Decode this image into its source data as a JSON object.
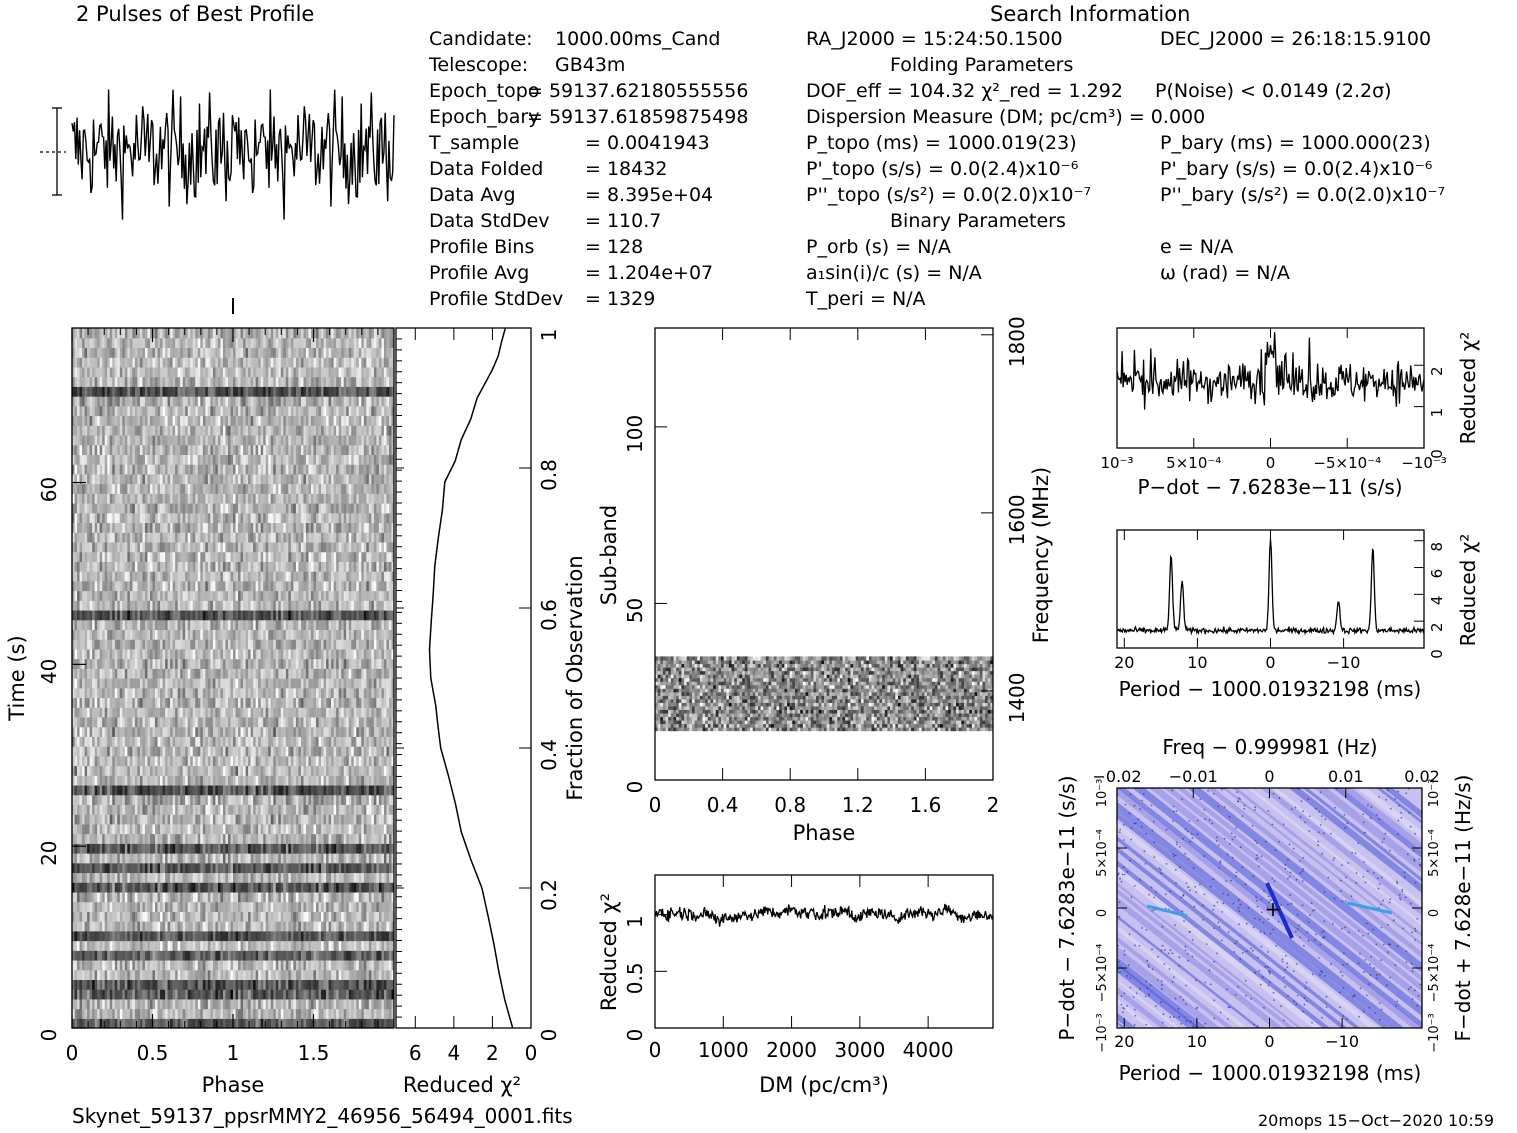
{
  "profile_title": "2 Pulses of Best Profile",
  "search_info_title": "Search Information",
  "left_info": [
    {
      "label": "Candidate:",
      "value": "1000.00ms_Cand"
    },
    {
      "label": "Telescope:",
      "value": "GB43m"
    },
    {
      "label": "Epoch_topo",
      "value": "= 59137.62180555556"
    },
    {
      "label": "Epoch_bary",
      "value": "= 59137.61859875498"
    },
    {
      "label": "T_sample",
      "value": "=  0.0041943"
    },
    {
      "label": "Data Folded",
      "value": "=  18432"
    },
    {
      "label": "Data Avg",
      "value": "=  8.395e+04"
    },
    {
      "label": "Data StdDev",
      "value": "=  110.7"
    },
    {
      "label": "Profile Bins",
      "value": "=  128"
    },
    {
      "label": "Profile Avg",
      "value": "=  1.204e+07"
    },
    {
      "label": "Profile StdDev",
      "value": "=  1329"
    }
  ],
  "ra": "RA_J2000 = 15:24:50.1500",
  "dec": "DEC_J2000 = 26:18:15.9100",
  "folding_title": "Folding Parameters",
  "dof": "DOF_eff = 104.32   χ²_red = 1.292",
  "pnoise": "P(Noise) < 0.0149   (2.2σ)",
  "dm_line": "Dispersion Measure (DM; pc/cm³) = 0.000",
  "ptopo": "P_topo (ms) =  1000.019(23)",
  "pbary": "P_bary (ms) =  1000.000(23)",
  "pdtopo": "P'_topo (s/s) = 0.0(2.4)x10⁻⁶",
  "pdbary": "P'_bary (s/s) = 0.0(2.4)x10⁻⁶",
  "pddtopo": "P''_topo (s/s²) = 0.0(2.0)x10⁻⁷",
  "pddbary": "P''_bary (s/s²) = 0.0(2.0)x10⁻⁷",
  "binary_title": "Binary Parameters",
  "porb": "P_orb (s) = N/A",
  "ecc": "e = N/A",
  "a1sini": "a₁sin(i)/c (s) = N/A",
  "omega": "ω (rad) = N/A",
  "tperi": "T_peri = N/A",
  "footer_file": "Skynet_59137_ppsrMMY2_46956_56494_0001.fits",
  "footer_stamp": "20mops 15−Oct−2020 10:59",
  "colors": {
    "grey_dark": "#222222",
    "blue": "#4a55d8",
    "lavender": "#c8c0ee"
  },
  "chart_data": [
    {
      "type": "line",
      "name": "profile",
      "title": "2 Pulses of Best Profile",
      "xlim": [
        0,
        2
      ],
      "note_values": "random noise around mean"
    },
    {
      "type": "heatmap",
      "name": "time-phase",
      "xlabel": "Phase",
      "ylabel": "Time (s)",
      "xlim": [
        0,
        2
      ],
      "ylim": [
        0,
        77
      ],
      "x_ticks": [
        "0",
        "0.5",
        "1",
        "1.5"
      ],
      "y_ticks": [
        "0",
        "20",
        "40",
        "60"
      ]
    },
    {
      "type": "line",
      "name": "reduced-chi2-vs-time",
      "xlabel": "Reduced χ²",
      "ylabel": "Fraction of Observation",
      "xlim": [
        7,
        0
      ],
      "ylim": [
        0,
        1
      ],
      "x_ticks": [
        "6",
        "4",
        "2",
        "0"
      ],
      "y_ticks": [
        "0",
        "0.2",
        "0.4",
        "0.6",
        "0.8",
        "1"
      ],
      "x": [
        1.0,
        1.3,
        1.6,
        1.9,
        2.2,
        2.6,
        3.1,
        3.6,
        4.0,
        4.3,
        4.6,
        4.8,
        5.0,
        5.1,
        5.2,
        5.2,
        5.1,
        5.0,
        4.8,
        4.6,
        4.4,
        4.0,
        3.6,
        3.2,
        2.8,
        2.4,
        2.0,
        1.7,
        1.5,
        1.3
      ],
      "y": [
        0,
        0.04,
        0.08,
        0.12,
        0.16,
        0.2,
        0.24,
        0.28,
        0.32,
        0.36,
        0.4,
        0.43,
        0.46,
        0.5,
        0.54,
        0.58,
        0.62,
        0.66,
        0.7,
        0.74,
        0.78,
        0.81,
        0.84,
        0.87,
        0.9,
        0.92,
        0.94,
        0.96,
        0.98,
        1.0
      ]
    },
    {
      "type": "heatmap",
      "name": "subband-phase",
      "xlabel": "Phase",
      "ylabel": "Sub-band",
      "y2label": "Frequency (MHz)",
      "xlim": [
        0,
        2
      ],
      "ylim": [
        0,
        128
      ],
      "x_ticks": [
        "0",
        "0.4",
        "0.8",
        "1.2",
        "1.6",
        "2"
      ],
      "y_ticks": [
        "0",
        "50",
        "100"
      ],
      "y2_ticks": [
        "1400",
        "1600",
        "1800"
      ],
      "data_band": [
        14,
        35
      ]
    },
    {
      "type": "line",
      "name": "reduced-chi2-vs-dm",
      "xlabel": "DM (pc/cm³)",
      "ylabel": "Reduced χ²",
      "xlim": [
        0,
        4950
      ],
      "ylim": [
        0,
        1.35
      ],
      "x_ticks": [
        "0",
        "1000",
        "2000",
        "3000",
        "4000"
      ],
      "y_ticks": [
        "0",
        "0.5",
        "1"
      ],
      "mean": 1.0
    },
    {
      "type": "line",
      "name": "reduced-chi2-vs-pdot",
      "xlabel": "P−dot − 7.6283e−11 (s/s)",
      "ylabel": "Reduced χ²",
      "xlim": [
        0.001,
        -0.001
      ],
      "ylim": [
        0,
        2.9
      ],
      "x_ticks": [
        "10⁻³",
        "5×10⁻⁴",
        "0",
        "−5×10⁻⁴",
        "−10⁻³"
      ],
      "y_ticks": [
        "0",
        "1",
        "2"
      ]
    },
    {
      "type": "line",
      "name": "reduced-chi2-vs-period",
      "xlabel": "Period − 1000.01932198 (ms)",
      "ylabel": "Reduced χ²",
      "xlim": [
        21,
        -21
      ],
      "ylim": [
        0,
        8.8
      ],
      "x_ticks": [
        "20",
        "10",
        "0",
        "−10"
      ],
      "y_ticks": [
        "0",
        "2",
        "4",
        "6",
        "8"
      ],
      "peaks": [
        {
          "x": 13.6,
          "y": 6.9
        },
        {
          "x": 12.1,
          "y": 5.1
        },
        {
          "x": 0,
          "y": 8.1
        },
        {
          "x": -9.3,
          "y": 3.6
        },
        {
          "x": -14.0,
          "y": 7.4
        }
      ]
    },
    {
      "type": "heatmap",
      "name": "period-pdot-plane",
      "title": "Freq − 0.999981 (Hz)",
      "xlabel": "Period − 1000.01932198 (ms)",
      "ylabel": "P−dot − 7.6283e−11 (s/s)",
      "y2label": "F−dot + 7.628e−11 (Hz/s)",
      "x_ticks": [
        "20",
        "10",
        "0",
        "−10"
      ],
      "x2_ticks": [
        "−0.02",
        "−0.01",
        "0",
        "0.01",
        "0.02"
      ],
      "y_ticks": [
        "10⁻³",
        "5×10⁻⁴",
        "0",
        "−5×10⁻⁴",
        "−10⁻³"
      ],
      "y2_ticks": [
        "−10⁻³",
        "−5×10⁻⁴",
        "0",
        "5×10⁻⁴",
        "10⁻³"
      ]
    }
  ]
}
